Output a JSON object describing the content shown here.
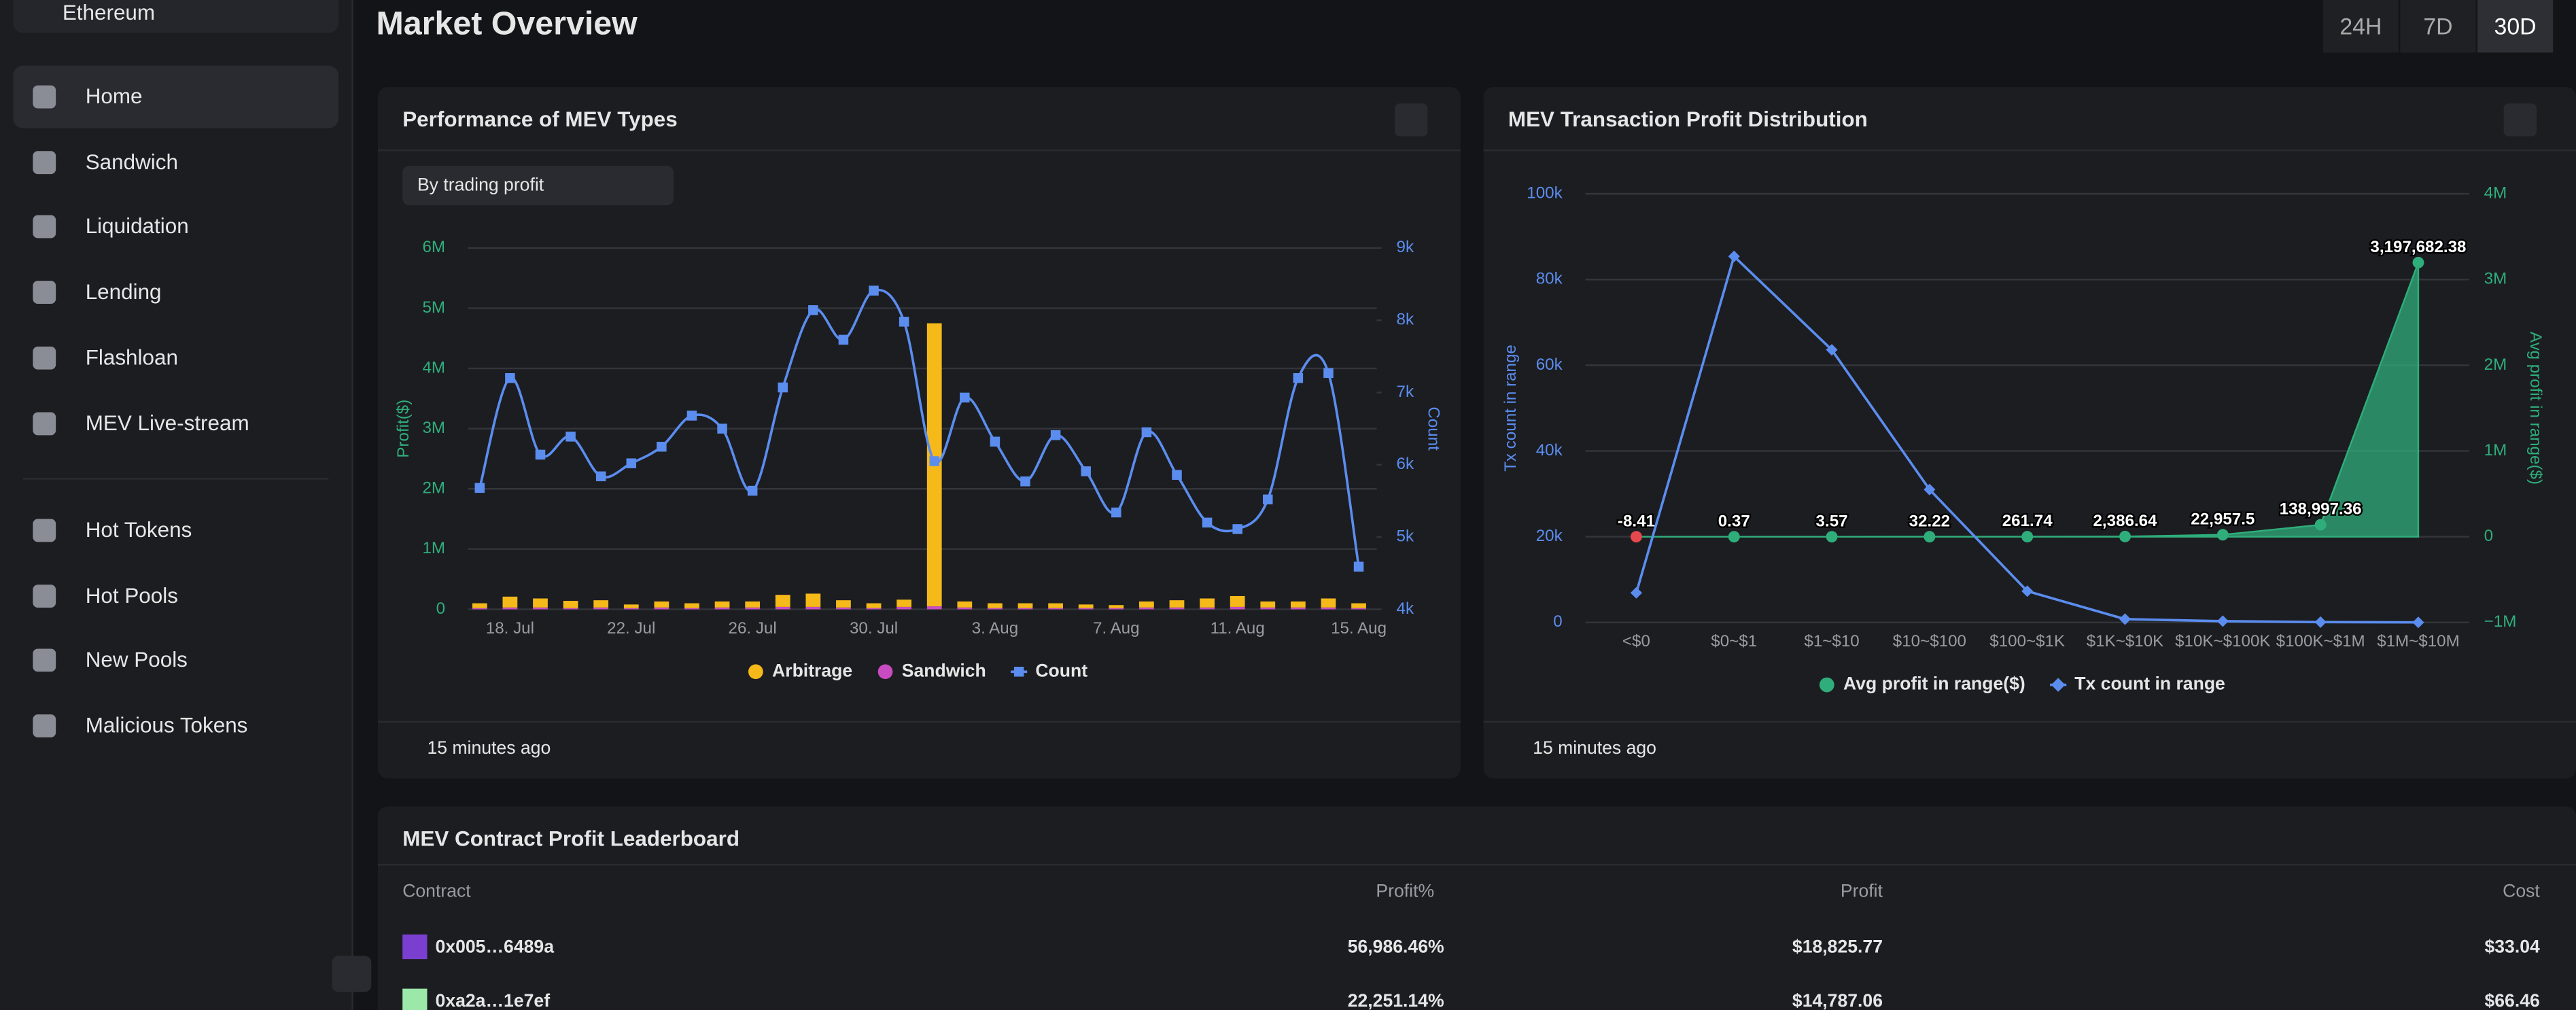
{
  "sidebar": {
    "network": "Ethereum",
    "nav": [
      "Home",
      "Sandwich",
      "Liquidation",
      "Lending",
      "Flashloan",
      "MEV Live-stream"
    ],
    "nav2": [
      "Hot Tokens",
      "Hot Pools",
      "New Pools",
      "Malicious Tokens"
    ]
  },
  "header": {
    "title": "Market Overview",
    "ranges": [
      "24H",
      "7D",
      "30D"
    ]
  },
  "cards": [
    {
      "title": "Performance of MEV Types",
      "select": "By trading profit",
      "updated": "15 minutes ago"
    },
    {
      "title": "MEV Transaction Profit Distribution",
      "updated": "15 minutes ago"
    }
  ],
  "chart_data": [
    {
      "type": "bar",
      "y_label": "Profit($)",
      "y2_label": "Count",
      "categories": [
        null,
        "18. Jul",
        null,
        null,
        null,
        "22. Jul",
        null,
        null,
        null,
        "26. Jul",
        null,
        null,
        null,
        "30. Jul",
        null,
        null,
        null,
        "3. Aug",
        null,
        null,
        null,
        "7. Aug",
        null,
        null,
        null,
        "11. Aug",
        null,
        null,
        null,
        "15. Aug"
      ],
      "series": [
        {
          "name": "Arbitrage",
          "color": "#f5b919",
          "values": [
            80000,
            180000,
            150000,
            120000,
            120000,
            60000,
            100000,
            80000,
            100000,
            100000,
            200000,
            220000,
            120000,
            80000,
            120000,
            4700000,
            100000,
            80000,
            80000,
            80000,
            60000,
            50000,
            100000,
            120000,
            150000,
            180000,
            100000,
            100000,
            150000,
            80000
          ]
        },
        {
          "name": "Sandwich",
          "color": "#c74cc1",
          "values": [
            20000,
            30000,
            30000,
            20000,
            30000,
            20000,
            30000,
            20000,
            30000,
            30000,
            40000,
            40000,
            30000,
            20000,
            40000,
            50000,
            30000,
            20000,
            20000,
            20000,
            20000,
            20000,
            30000,
            30000,
            30000,
            40000,
            30000,
            30000,
            30000,
            20000
          ]
        },
        {
          "name": "Count",
          "color": "#5b8def",
          "axis": "y2",
          "values": [
            5680,
            7200,
            6140,
            6390,
            5840,
            6020,
            6250,
            6680,
            6500,
            5640,
            7070,
            8140,
            7730,
            8410,
            7980,
            6050,
            6930,
            6320,
            5770,
            6410,
            5910,
            5340,
            6450,
            5860,
            5200,
            5110,
            5520,
            7200,
            7270,
            4590
          ]
        }
      ],
      "ylim": [
        0,
        6000000
      ],
      "yticks": [
        0,
        {
          "value": 1000000,
          "label": "1M"
        },
        {
          "value": 2000000,
          "label": "2M"
        },
        {
          "value": 3000000,
          "label": "3M"
        },
        {
          "value": 4000000,
          "label": "4M"
        },
        {
          "value": 5000000,
          "label": "5M"
        },
        {
          "value": 6000000,
          "label": "6M"
        }
      ],
      "y2lim": [
        4000,
        9000
      ],
      "y2ticks": [
        {
          "value": 4000,
          "label": "4k"
        },
        {
          "value": 5000,
          "label": "5k"
        },
        {
          "value": 6000,
          "label": "6k"
        },
        {
          "value": 7000,
          "label": "7k"
        },
        {
          "value": 8000,
          "label": "8k"
        },
        {
          "value": 9000,
          "label": "9k"
        }
      ],
      "grid": true
    },
    {
      "type": "line",
      "y_label": "Tx count in range",
      "y2_label": "Avg profit in range($)",
      "categories": [
        "<$0",
        "$0~$1",
        "$1~$10",
        "$10~$100",
        "$100~$1K",
        "$1K~$10K",
        "$10K~$100K",
        "$100K~$1M",
        "$1M~$10M"
      ],
      "series": [
        {
          "name": "Avg profit in range($)",
          "color": "#2fae7b",
          "axis": "y2",
          "values": [
            -8.41,
            0.37,
            3.57,
            32.22,
            261.74,
            2386.64,
            22957.5,
            138997.36,
            3197682.38
          ],
          "value_labels": [
            "-8.41",
            "0.37",
            "3.57",
            "32.22",
            "261.74",
            "2,386.64",
            "22,957.5",
            "138,997.36",
            "3,197,682.38"
          ]
        },
        {
          "name": "Tx count in range",
          "color": "#5b8def",
          "values": [
            6900,
            85400,
            63600,
            31000,
            7300,
            770,
            300,
            80,
            10
          ]
        }
      ],
      "ylim": [
        0,
        100000
      ],
      "yticks": [
        0,
        {
          "value": 20000,
          "label": "20k"
        },
        {
          "value": 40000,
          "label": "40k"
        },
        {
          "value": 60000,
          "label": "60k"
        },
        {
          "value": 80000,
          "label": "80k"
        },
        {
          "value": 100000,
          "label": "100k"
        }
      ],
      "y2lim": [
        -1000000,
        4000000
      ],
      "y2ticks": [
        {
          "value": -1000000,
          "label": "−1M"
        },
        0,
        {
          "value": 1000000,
          "label": "1M"
        },
        {
          "value": 2000000,
          "label": "2M"
        },
        {
          "value": 3000000,
          "label": "3M"
        },
        {
          "value": 4000000,
          "label": "4M"
        }
      ],
      "grid": true
    }
  ],
  "table": {
    "title": "MEV Contract Profit Leaderboard",
    "columns": [
      "Contract",
      "Profit%",
      "Profit",
      "Cost"
    ],
    "rows": [
      [
        "0x005…6489a",
        "56,986.46%",
        "$18,825.77",
        "$33.04"
      ],
      [
        "0xa2a…1e7ef",
        "22,251.14%",
        "$14,787.06",
        "$66.46"
      ]
    ]
  }
}
